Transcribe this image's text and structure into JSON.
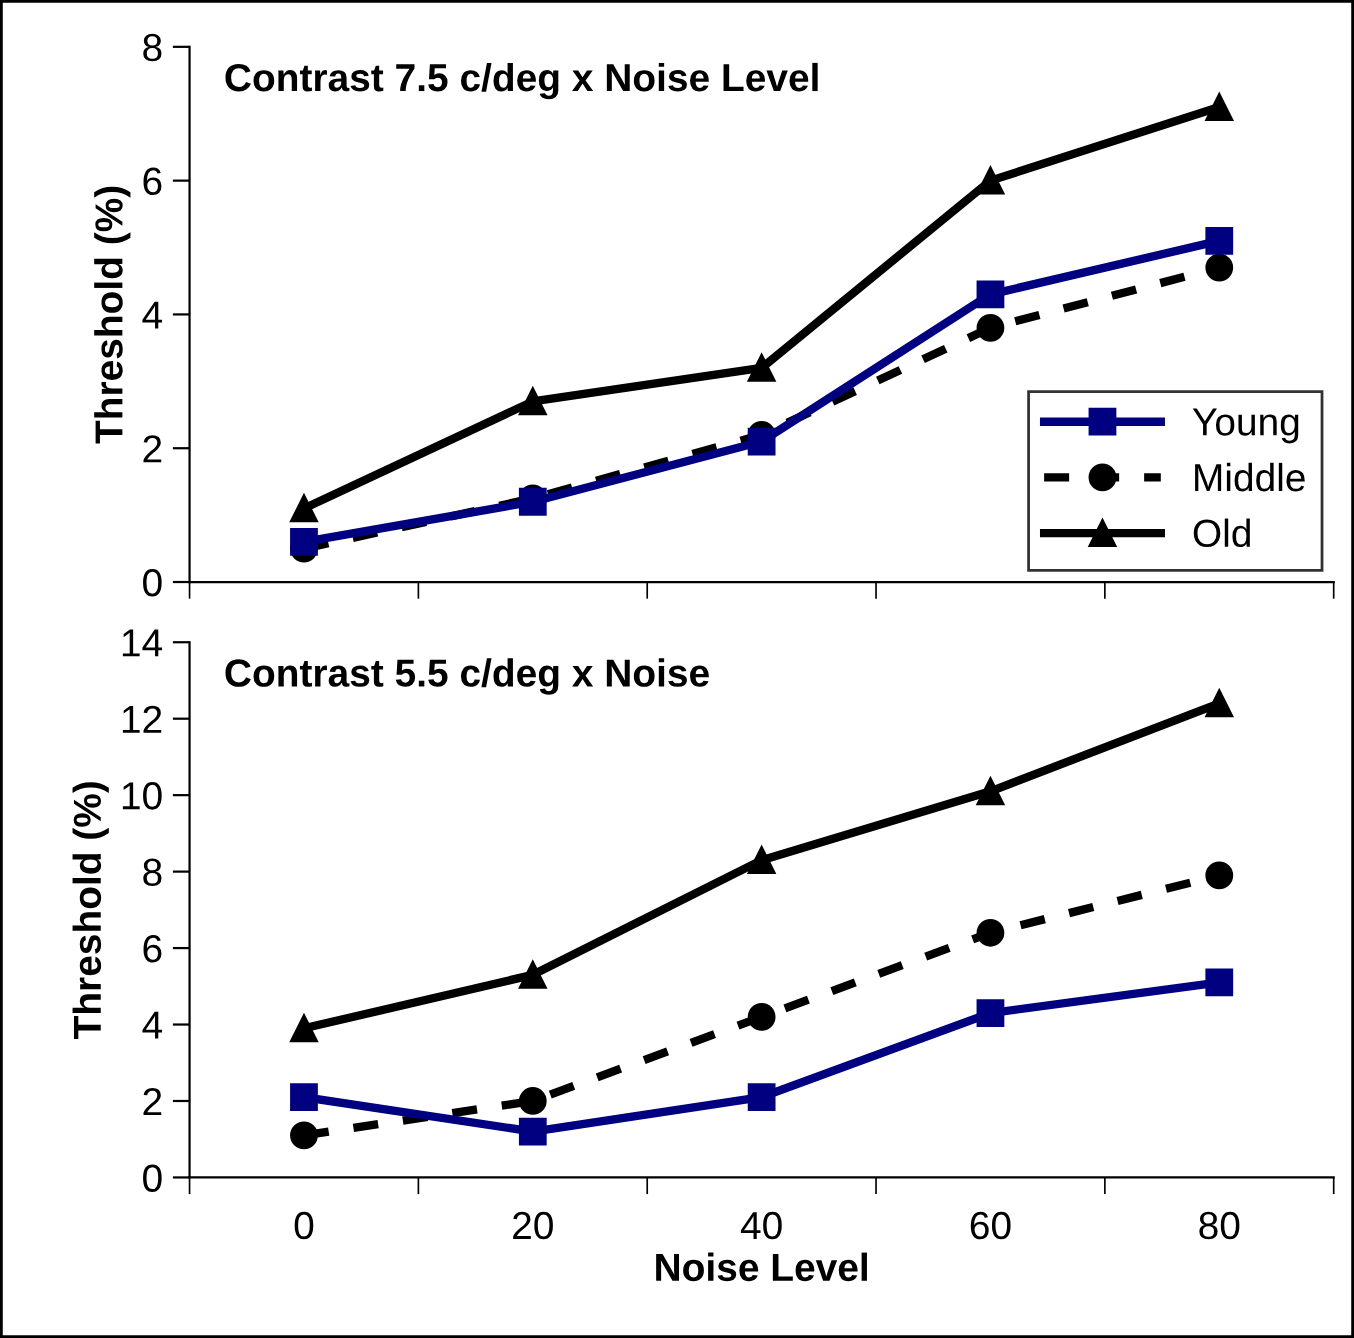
{
  "chart_data": [
    {
      "type": "line",
      "title": "Contrast 7.5 c/deg x Noise Level",
      "ylabel": "Threshold (%)",
      "categories": [
        "0",
        "20",
        "40",
        "60",
        "80"
      ],
      "ylim": [
        0,
        8
      ],
      "yticks": [
        0,
        2,
        4,
        6,
        8
      ],
      "tick_labels": "y",
      "legend": "bottom right",
      "grid": false,
      "series": [
        {
          "name": "Young",
          "color": "#000080",
          "marker": "square",
          "line_style": "solid",
          "values": [
            0.6,
            1.2,
            2.1,
            4.3,
            5.1
          ]
        },
        {
          "name": "Middle",
          "color": "#000000",
          "marker": "circle",
          "line_style": "dashed",
          "values": [
            0.5,
            1.25,
            2.2,
            3.8,
            4.7
          ]
        },
        {
          "name": "Old",
          "color": "#000000",
          "marker": "triangle",
          "line_style": "solid",
          "values": [
            1.1,
            2.7,
            3.2,
            6.0,
            7.1
          ]
        }
      ]
    },
    {
      "type": "line",
      "title": "Contrast 5.5 c/deg x Noise",
      "ylabel": "Threshold (%)",
      "xlabel": "Noise Level",
      "categories": [
        "0",
        "20",
        "40",
        "60",
        "80"
      ],
      "ylim": [
        0,
        14
      ],
      "yticks": [
        0,
        2,
        4,
        6,
        8,
        10,
        12,
        14
      ],
      "legend": false,
      "grid": false,
      "series": [
        {
          "color": "#000080",
          "marker": "square",
          "line_style": "solid",
          "values": [
            2.1,
            1.2,
            2.1,
            4.3,
            5.1
          ]
        },
        {
          "color": "#000000",
          "marker": "circle",
          "line_style": "dashed",
          "values": [
            1.1,
            2.0,
            4.2,
            6.4,
            7.9
          ]
        },
        {
          "color": "#000000",
          "marker": "triangle",
          "line_style": "solid",
          "values": [
            3.9,
            5.3,
            8.3,
            10.1,
            12.4
          ]
        }
      ]
    }
  ]
}
